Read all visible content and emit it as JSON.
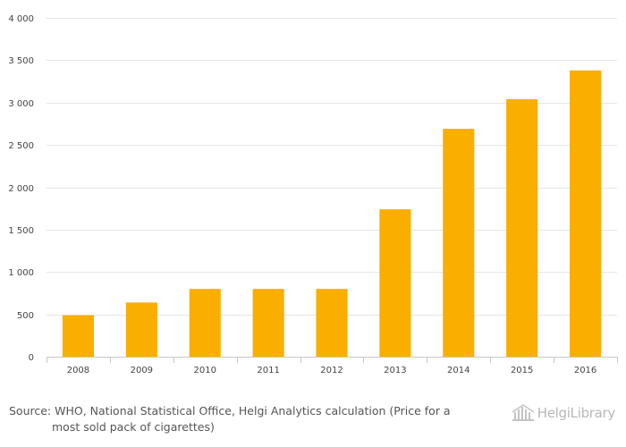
{
  "chart_data": {
    "type": "bar",
    "categories": [
      "2008",
      "2009",
      "2010",
      "2011",
      "2012",
      "2013",
      "2014",
      "2015",
      "2016"
    ],
    "values": [
      490,
      640,
      800,
      800,
      800,
      1740,
      2690,
      3040,
      3380
    ],
    "ylim": [
      0,
      4000
    ],
    "yticks": [
      0,
      500,
      1000,
      1500,
      2000,
      2500,
      3000,
      3500,
      4000
    ],
    "ytick_labels": [
      "0",
      "500",
      "1 000",
      "1 500",
      "2 000",
      "2 500",
      "3 000",
      "3 500",
      "4 000"
    ],
    "grid": true,
    "bar_color": "#f9ae00",
    "grid_color": "#e6e6e6",
    "title": "",
    "xlabel": "",
    "ylabel": ""
  },
  "footer": {
    "source_line1": "Source: WHO, National Statistical Office, Helgi Analytics calculation (Price for a",
    "source_line2": "most sold pack of cigarettes)",
    "brand_part1": "Helgi",
    "brand_part2": "Library"
  }
}
